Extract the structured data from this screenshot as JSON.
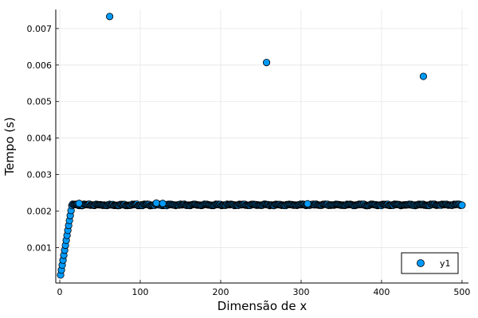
{
  "chart_data": {
    "type": "scatter",
    "xlabel": "Dimensão de x",
    "ylabel": "Tempo (s)",
    "xlim": [
      -5,
      508
    ],
    "ylim": [
      3e-05,
      0.00752
    ],
    "x_ticks": [
      0,
      100,
      200,
      300,
      400,
      500
    ],
    "x_tick_labels": [
      "0",
      "100",
      "200",
      "300",
      "400",
      "500"
    ],
    "y_ticks": [
      0.001,
      0.002,
      0.003,
      0.004,
      0.005,
      0.006,
      0.007
    ],
    "y_tick_labels": [
      "0.001",
      "0.002",
      "0.003",
      "0.004",
      "0.005",
      "0.006",
      "0.007"
    ],
    "grid": true,
    "legend": {
      "position": "bottom-right",
      "entries": [
        "y1"
      ]
    },
    "series": [
      {
        "name": "y1",
        "color": "#009AFA",
        "ramp": {
          "x_start": 1,
          "x_end": 15,
          "y_start": 0.00025,
          "y_end": 0.00215
        },
        "plateau": {
          "x_start": 16,
          "x_end": 500,
          "y": 0.00217
        },
        "outliers": [
          {
            "x": 62,
            "y": 0.00733
          },
          {
            "x": 257,
            "y": 0.00607
          },
          {
            "x": 452,
            "y": 0.00569
          },
          {
            "x": 24,
            "y": 0.00221
          },
          {
            "x": 120,
            "y": 0.00222
          },
          {
            "x": 128,
            "y": 0.00221
          },
          {
            "x": 308,
            "y": 0.0022
          }
        ]
      }
    ]
  }
}
